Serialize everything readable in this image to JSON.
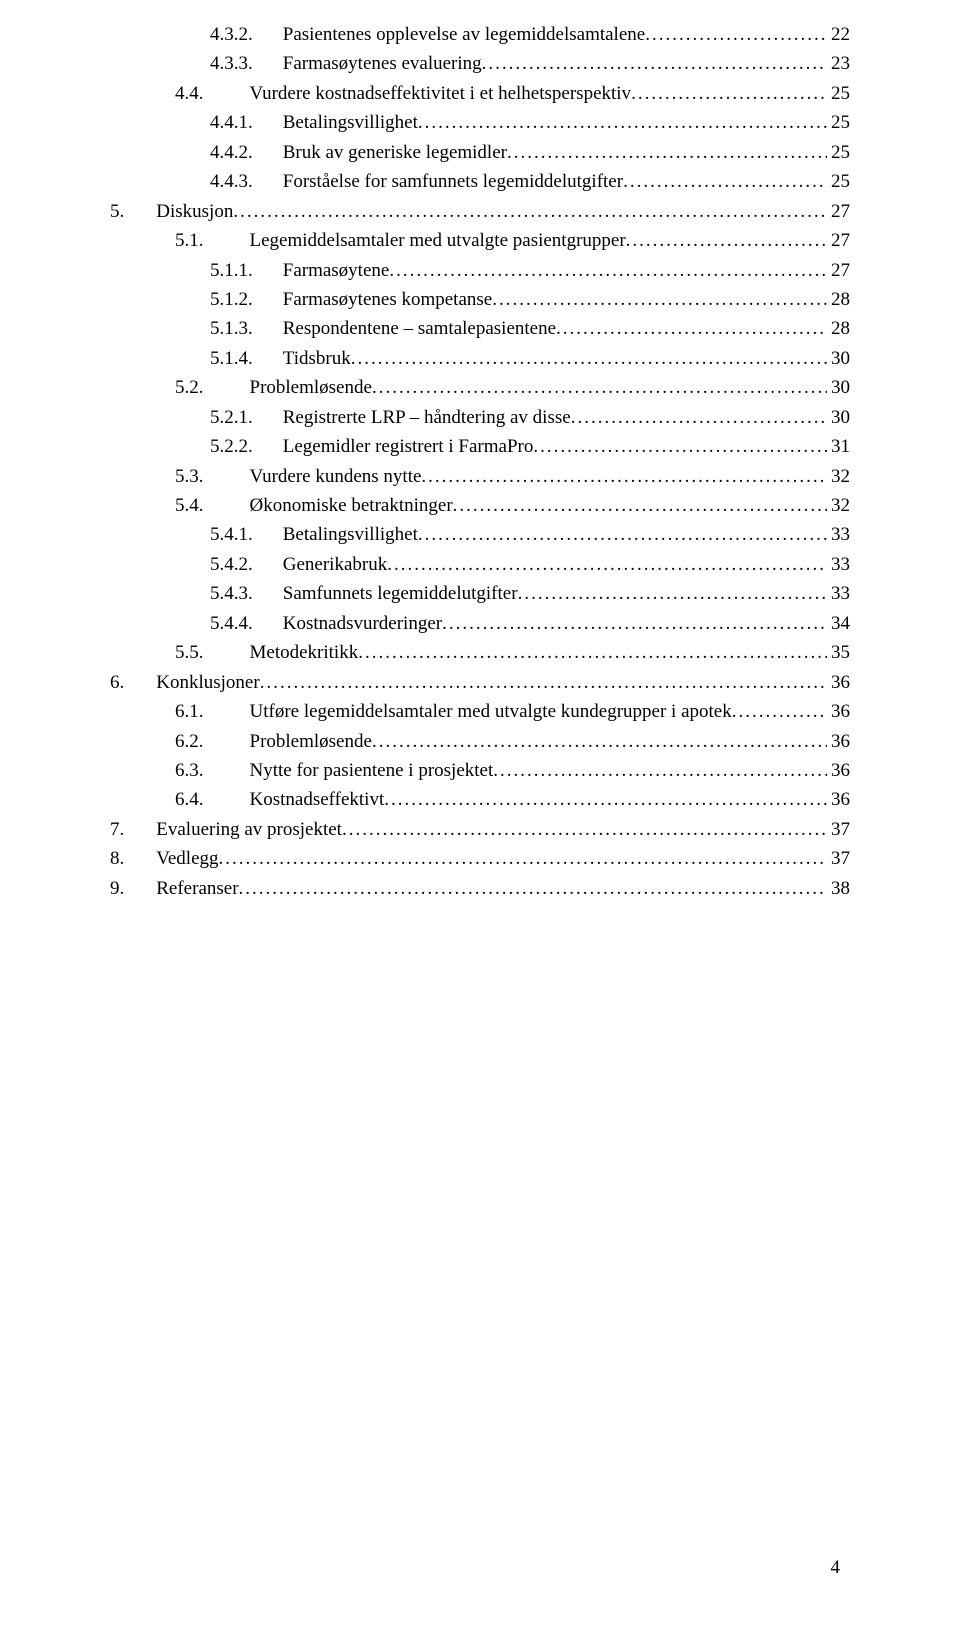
{
  "page_number": "4",
  "font": {
    "family": "Times New Roman",
    "size_pt": 12,
    "color": "#000000",
    "background": "#ffffff",
    "leader_color": "#000000"
  },
  "toc": [
    {
      "level": 5,
      "num": "4.3.2.",
      "gap": "gap-4",
      "title": "Pasientenes opplevelse av legemiddelsamtalene",
      "page": "22"
    },
    {
      "level": 5,
      "num": "4.3.3.",
      "gap": "gap-4",
      "title": "Farmasøytenes evaluering",
      "page": "23"
    },
    {
      "level": 3,
      "num": "4.4.",
      "gap": "gap-3",
      "title": "Vurdere kostnadseffektivitet i et helhetsperspektiv",
      "page": "25"
    },
    {
      "level": 5,
      "num": "4.4.1.",
      "gap": "gap-4",
      "title": "Betalingsvillighet",
      "page": "25"
    },
    {
      "level": 5,
      "num": "4.4.2.",
      "gap": "gap-4",
      "title": "Bruk av generiske legemidler",
      "page": "25"
    },
    {
      "level": 5,
      "num": "4.4.3.",
      "gap": "gap-4",
      "title": "Forståelse for samfunnets legemiddelutgifter",
      "page": "25"
    },
    {
      "level": 1,
      "num": "5.",
      "gap": "gap-1",
      "title": "Diskusjon",
      "page": "27"
    },
    {
      "level": 3,
      "num": "5.1.",
      "gap": "gap-3",
      "title": "Legemiddelsamtaler med utvalgte pasientgrupper",
      "page": "27"
    },
    {
      "level": 5,
      "num": "5.1.1.",
      "gap": "gap-4",
      "title": "Farmasøytene",
      "page": "27"
    },
    {
      "level": 5,
      "num": "5.1.2.",
      "gap": "gap-4",
      "title": "Farmasøytenes kompetanse",
      "page": "28"
    },
    {
      "level": 5,
      "num": "5.1.3.",
      "gap": "gap-4",
      "title": "Respondentene – samtalepasientene",
      "page": "28"
    },
    {
      "level": 5,
      "num": "5.1.4.",
      "gap": "gap-4",
      "title": "Tidsbruk",
      "page": "30"
    },
    {
      "level": 3,
      "num": "5.2.",
      "gap": "gap-3",
      "title": "Problemløsende",
      "page": "30"
    },
    {
      "level": 5,
      "num": "5.2.1.",
      "gap": "gap-4",
      "title": "Registrerte LRP – håndtering av disse",
      "page": "30"
    },
    {
      "level": 5,
      "num": "5.2.2.",
      "gap": "gap-4",
      "title": "Legemidler registrert i FarmaPro",
      "page": "31"
    },
    {
      "level": 3,
      "num": "5.3.",
      "gap": "gap-3",
      "title": "Vurdere kundens nytte",
      "page": "32"
    },
    {
      "level": 3,
      "num": "5.4.",
      "gap": "gap-3",
      "title": "Økonomiske betraktninger",
      "page": "32"
    },
    {
      "level": 5,
      "num": "5.4.1.",
      "gap": "gap-4",
      "title": "Betalingsvillighet",
      "page": "33"
    },
    {
      "level": 5,
      "num": "5.4.2.",
      "gap": "gap-4",
      "title": "Generikabruk",
      "page": "33"
    },
    {
      "level": 5,
      "num": "5.4.3.",
      "gap": "gap-4",
      "title": "Samfunnets legemiddelutgifter",
      "page": "33"
    },
    {
      "level": 5,
      "num": "5.4.4.",
      "gap": "gap-4",
      "title": "Kostnadsvurderinger",
      "page": "34"
    },
    {
      "level": 3,
      "num": "5.5.",
      "gap": "gap-3",
      "title": "Metodekritikk",
      "page": "35"
    },
    {
      "level": 1,
      "num": "6.",
      "gap": "gap-1",
      "title": "Konklusjoner",
      "page": "36"
    },
    {
      "level": 3,
      "num": "6.1.",
      "gap": "gap-3",
      "title": "Utføre legemiddelsamtaler med utvalgte kundegrupper i apotek",
      "page": "36"
    },
    {
      "level": 3,
      "num": "6.2.",
      "gap": "gap-3",
      "title": "Problemløsende",
      "page": "36"
    },
    {
      "level": 3,
      "num": "6.3.",
      "gap": "gap-3",
      "title": "Nytte for pasientene i prosjektet",
      "page": "36"
    },
    {
      "level": 3,
      "num": "6.4.",
      "gap": "gap-3",
      "title": "Kostnadseffektivt",
      "page": "36"
    },
    {
      "level": 1,
      "num": "7.",
      "gap": "gap-1",
      "title": "Evaluering av prosjektet",
      "page": "37"
    },
    {
      "level": 1,
      "num": "8.",
      "gap": "gap-1",
      "title": "Vedlegg",
      "page": "37"
    },
    {
      "level": 1,
      "num": "9.",
      "gap": "gap-1",
      "title": "Referanser",
      "page": "38"
    }
  ]
}
